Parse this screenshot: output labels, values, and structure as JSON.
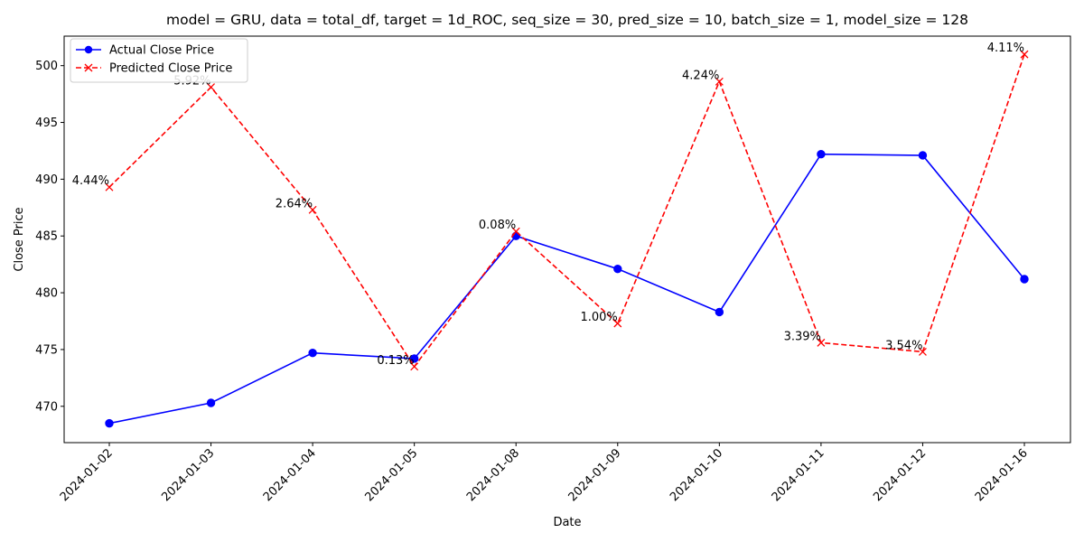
{
  "chart_data": {
    "type": "line",
    "title": "model = GRU, data = total_df, target = 1d_ROC, seq_size = 30, pred_size = 10, batch_size = 1, model_size = 128",
    "xlabel": "Date",
    "ylabel": "Close Price",
    "categories": [
      "2024-01-02",
      "2024-01-03",
      "2024-01-04",
      "2024-01-05",
      "2024-01-08",
      "2024-01-09",
      "2024-01-10",
      "2024-01-11",
      "2024-01-12",
      "2024-01-16"
    ],
    "yticks": [
      470,
      475,
      480,
      485,
      490,
      495,
      500
    ],
    "ylim": [
      466.8,
      502.6
    ],
    "grid": false,
    "legend_position": "top-left",
    "series": [
      {
        "name": "Actual Close Price",
        "color": "#0000ff",
        "style": "solid",
        "marker": "circle",
        "values": [
          468.5,
          470.3,
          474.7,
          474.2,
          485.0,
          482.1,
          478.3,
          492.2,
          492.1,
          481.2
        ]
      },
      {
        "name": "Predicted Close Price",
        "color": "#ff0000",
        "style": "dashed",
        "marker": "x",
        "values": [
          489.3,
          498.1,
          487.3,
          473.5,
          485.4,
          477.3,
          498.6,
          475.6,
          474.8,
          501.0
        ]
      }
    ],
    "annotations": [
      "4.44%",
      "5.92%",
      "2.64%",
      "0.13%",
      "0.08%",
      "1.00%",
      "4.24%",
      "3.39%",
      "3.54%",
      "4.11%"
    ]
  }
}
